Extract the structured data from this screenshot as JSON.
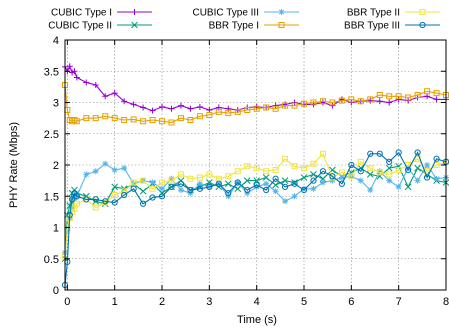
{
  "chart_data": {
    "type": "line",
    "xlabel": "Time (s)",
    "ylabel": "PHY Rate (Mbps)",
    "xlim": [
      -0.05,
      8
    ],
    "ylim": [
      0,
      4
    ],
    "xticks": [
      0,
      1,
      2,
      3,
      4,
      5,
      6,
      7,
      8
    ],
    "yticks": [
      0,
      0.5,
      1,
      1.5,
      2,
      2.5,
      3,
      3.5,
      4
    ],
    "grid": true,
    "legend_position": "top",
    "series": [
      {
        "name": "CUBIC Type I",
        "color": "#9400d3",
        "marker": "plus",
        "x": [
          -0.05,
          0,
          0.05,
          0.1,
          0.15,
          0.2,
          0.4,
          0.6,
          0.8,
          1.0,
          1.2,
          1.4,
          1.6,
          1.8,
          2.0,
          2.2,
          2.4,
          2.6,
          2.8,
          3.0,
          3.2,
          3.4,
          3.6,
          3.8,
          4.0,
          4.2,
          4.4,
          4.6,
          4.8,
          5.0,
          5.2,
          5.4,
          5.6,
          5.8,
          6.0,
          6.2,
          6.4,
          6.6,
          6.8,
          7.0,
          7.2,
          7.4,
          7.6,
          7.8,
          8.0
        ],
        "y": [
          3.57,
          3.5,
          3.58,
          3.48,
          3.5,
          3.4,
          3.32,
          3.28,
          3.1,
          3.15,
          3.02,
          2.97,
          2.92,
          2.87,
          2.93,
          2.9,
          2.95,
          2.9,
          2.93,
          2.88,
          2.92,
          2.9,
          2.88,
          2.92,
          2.93,
          2.92,
          2.95,
          2.97,
          3.0,
          2.97,
          2.97,
          3.0,
          2.95,
          3.05,
          3.0,
          3.02,
          3.03,
          3.02,
          3.0,
          3.05,
          3.03,
          3.08,
          3.1,
          3.05,
          3.05
        ]
      },
      {
        "name": "CUBIC Type II",
        "color": "#009e73",
        "marker": "cross",
        "x": [
          -0.05,
          0,
          0.05,
          0.1,
          0.15,
          0.2,
          0.4,
          0.6,
          0.8,
          1.0,
          1.2,
          1.4,
          1.6,
          1.8,
          2.0,
          2.2,
          2.4,
          2.6,
          2.8,
          3.0,
          3.2,
          3.4,
          3.6,
          3.8,
          4.0,
          4.2,
          4.4,
          4.6,
          4.8,
          5.0,
          5.2,
          5.4,
          5.6,
          5.8,
          6.0,
          6.2,
          6.4,
          6.6,
          6.8,
          7.0,
          7.2,
          7.4,
          7.6,
          7.8,
          8.0
        ],
        "y": [
          0.5,
          1.2,
          1.35,
          1.55,
          1.6,
          1.55,
          1.5,
          1.42,
          1.38,
          1.65,
          1.62,
          1.7,
          1.58,
          1.7,
          1.55,
          1.65,
          1.75,
          1.6,
          1.65,
          1.72,
          1.65,
          1.7,
          1.62,
          1.75,
          1.75,
          1.8,
          1.68,
          1.75,
          1.72,
          1.8,
          1.85,
          1.78,
          1.92,
          1.82,
          1.88,
          1.95,
          1.85,
          1.82,
          1.95,
          1.98,
          1.65,
          1.95,
          1.85,
          1.75,
          1.72
        ]
      },
      {
        "name": "CUBIC Type III",
        "color": "#56b4e9",
        "marker": "star",
        "x": [
          -0.05,
          0,
          0.05,
          0.1,
          0.15,
          0.2,
          0.4,
          0.6,
          0.8,
          1.0,
          1.2,
          1.4,
          1.6,
          1.8,
          2.0,
          2.2,
          2.4,
          2.6,
          2.8,
          3.0,
          3.2,
          3.4,
          3.6,
          3.8,
          4.0,
          4.2,
          4.4,
          4.6,
          4.8,
          5.0,
          5.2,
          5.4,
          5.6,
          5.8,
          6.0,
          6.2,
          6.4,
          6.6,
          6.8,
          7.0,
          7.2,
          7.4,
          7.6,
          7.8,
          8.0
        ],
        "y": [
          0.6,
          0.95,
          1.15,
          1.3,
          1.45,
          1.5,
          1.85,
          1.9,
          2.02,
          1.92,
          1.95,
          1.7,
          1.75,
          1.72,
          1.62,
          1.78,
          1.6,
          1.55,
          1.7,
          1.65,
          1.7,
          1.5,
          1.72,
          1.55,
          1.65,
          1.7,
          1.58,
          1.42,
          1.5,
          1.62,
          1.62,
          1.72,
          1.75,
          1.8,
          1.82,
          1.75,
          1.6,
          1.9,
          1.75,
          1.65,
          1.95,
          1.75,
          2.0,
          1.78,
          1.8
        ]
      },
      {
        "name": "BBR Type I",
        "color": "#e69f00",
        "marker": "square",
        "x": [
          -0.05,
          0,
          0.05,
          0.1,
          0.15,
          0.2,
          0.4,
          0.6,
          0.8,
          1.0,
          1.2,
          1.4,
          1.6,
          1.8,
          2.0,
          2.2,
          2.4,
          2.6,
          2.8,
          3.0,
          3.2,
          3.4,
          3.6,
          3.8,
          4.0,
          4.2,
          4.4,
          4.6,
          4.8,
          5.0,
          5.2,
          5.4,
          5.6,
          5.8,
          6.0,
          6.2,
          6.4,
          6.6,
          6.8,
          7.0,
          7.2,
          7.4,
          7.6,
          7.8,
          8.0
        ],
        "y": [
          3.28,
          2.88,
          2.72,
          2.7,
          2.72,
          2.7,
          2.75,
          2.75,
          2.78,
          2.75,
          2.72,
          2.73,
          2.7,
          2.72,
          2.7,
          2.68,
          2.75,
          2.72,
          2.78,
          2.8,
          2.85,
          2.83,
          2.85,
          2.88,
          2.9,
          2.92,
          2.9,
          2.95,
          2.95,
          2.98,
          3.0,
          3.02,
          3.0,
          3.03,
          3.05,
          3.02,
          3.05,
          3.12,
          3.1,
          3.1,
          3.08,
          3.12,
          3.18,
          3.15,
          3.12
        ]
      },
      {
        "name": "BBR Type II",
        "color": "#f0e442",
        "marker": "square",
        "x": [
          -0.05,
          0,
          0.05,
          0.1,
          0.15,
          0.2,
          0.4,
          0.6,
          0.8,
          1.0,
          1.2,
          1.4,
          1.6,
          1.8,
          2.0,
          2.2,
          2.4,
          2.6,
          2.8,
          3.0,
          3.2,
          3.4,
          3.6,
          3.8,
          4.0,
          4.2,
          4.4,
          4.6,
          4.8,
          5.0,
          5.2,
          5.4,
          5.6,
          5.8,
          6.0,
          6.2,
          6.4,
          6.6,
          6.8,
          7.0,
          7.2,
          7.4,
          7.6,
          7.8,
          8.0
        ],
        "y": [
          0.55,
          1.0,
          1.15,
          1.25,
          1.3,
          1.38,
          1.45,
          1.32,
          1.4,
          1.52,
          1.58,
          1.72,
          1.75,
          1.62,
          1.72,
          1.75,
          1.85,
          1.78,
          1.8,
          1.85,
          1.78,
          1.82,
          1.9,
          1.98,
          1.95,
          1.9,
          1.92,
          2.1,
          1.98,
          1.95,
          2.02,
          2.18,
          1.8,
          1.88,
          1.82,
          2.05,
          1.95,
          1.88,
          1.85,
          1.92,
          2.0,
          2.1,
          1.9,
          2.0,
          2.05
        ]
      },
      {
        "name": "BBR Type III",
        "color": "#0072b2",
        "marker": "circle",
        "x": [
          -0.05,
          0,
          0.05,
          0.1,
          0.15,
          0.2,
          0.4,
          0.6,
          0.8,
          1.0,
          1.2,
          1.4,
          1.6,
          1.8,
          2.0,
          2.2,
          2.4,
          2.6,
          2.8,
          3.0,
          3.2,
          3.4,
          3.6,
          3.8,
          4.0,
          4.2,
          4.4,
          4.6,
          4.8,
          5.0,
          5.2,
          5.4,
          5.6,
          5.8,
          6.0,
          6.2,
          6.4,
          6.6,
          6.8,
          7.0,
          7.2,
          7.4,
          7.6,
          7.8,
          8.0
        ],
        "y": [
          0.08,
          0.45,
          1.2,
          1.45,
          1.55,
          1.5,
          1.45,
          1.45,
          1.42,
          1.4,
          1.52,
          1.62,
          1.38,
          1.48,
          1.5,
          1.65,
          1.7,
          1.6,
          1.62,
          1.65,
          1.7,
          1.55,
          1.72,
          1.6,
          1.68,
          1.6,
          1.78,
          1.65,
          1.7,
          1.6,
          1.75,
          1.9,
          1.82,
          1.7,
          2.0,
          1.9,
          2.18,
          2.18,
          2.05,
          2.2,
          1.92,
          2.2,
          1.8,
          2.1,
          2.05
        ]
      }
    ]
  }
}
